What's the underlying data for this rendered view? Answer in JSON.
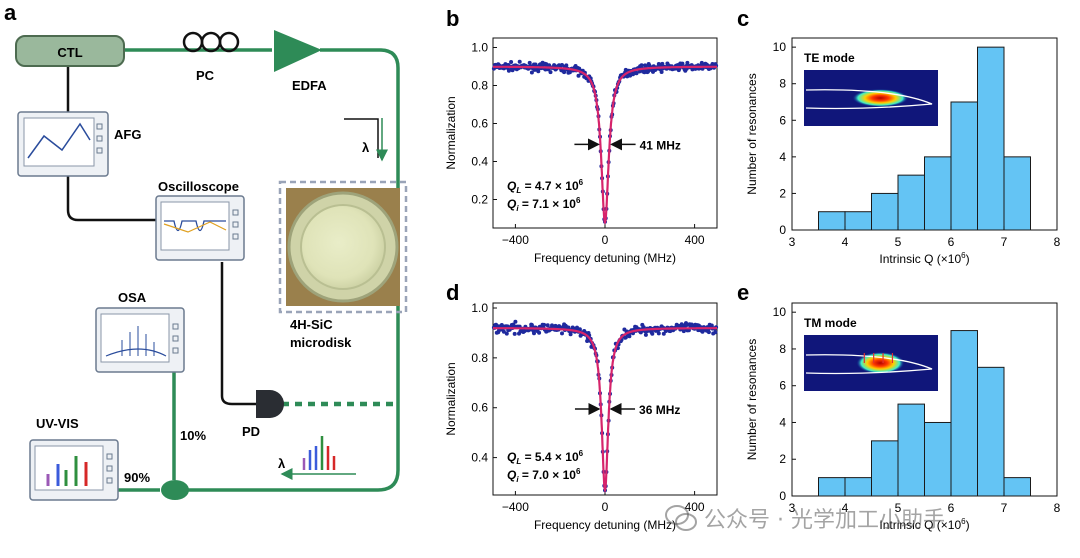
{
  "panels": {
    "a": "a",
    "b": "b",
    "c": "c",
    "d": "d",
    "e": "e"
  },
  "setup": {
    "ctl": "CTL",
    "pc": "PC",
    "edfa": "EDFA",
    "afg": "AFG",
    "oscilloscope": "Oscilloscope",
    "osa": "OSA",
    "uvvis": "UV-VIS",
    "pd": "PD",
    "ratio10": "10%",
    "ratio90": "90%",
    "lambda": "λ",
    "device1": "4H-SiC",
    "device2": "microdisk",
    "colors": {
      "fiber": "#2e8b57",
      "ctl_box": "#9ab89c"
    }
  },
  "chart_data": [
    {
      "id": "b",
      "type": "scatter",
      "xlabel": "Frequency detuning (MHz)",
      "ylabel": "Normalization",
      "xlim": [
        -500,
        500
      ],
      "ylim": [
        0.05,
        1.05
      ],
      "xticks": [
        -400,
        0,
        400
      ],
      "yticks": [
        0.2,
        0.4,
        0.6,
        0.8,
        1.0
      ],
      "tick_labels_x": [
        "−400",
        "0",
        "400"
      ],
      "tick_labels_y": [
        "0.2",
        "0.4",
        "0.6",
        "0.8",
        "1.0"
      ],
      "fit": {
        "baseline": 0.9,
        "dip_min": 0.08,
        "fwhm_mhz": 41
      },
      "annotation": "41 MHz",
      "ql_label": "Q",
      "ql_sub": "L",
      "ql_value": " = 4.7 × 10",
      "ql_exp": "6",
      "qi_label": "Q",
      "qi_sub": "i",
      "qi_value": " = 7.1 × 10",
      "qi_exp": "6",
      "colors": {
        "points": "#1f2a9e",
        "fit": "#d6246b"
      }
    },
    {
      "id": "d",
      "type": "scatter",
      "xlabel": "Frequency detuning (MHz)",
      "ylabel": "Normalization",
      "xlim": [
        -500,
        500
      ],
      "ylim": [
        0.25,
        1.02
      ],
      "xticks": [
        -400,
        0,
        400
      ],
      "yticks": [
        0.4,
        0.6,
        0.8,
        1.0
      ],
      "tick_labels_x": [
        "−400",
        "0",
        "400"
      ],
      "tick_labels_y": [
        "0.4",
        "0.6",
        "0.8",
        "1.0"
      ],
      "fit": {
        "baseline": 0.92,
        "dip_min": 0.27,
        "fwhm_mhz": 36
      },
      "annotation": "36 MHz",
      "ql_label": "Q",
      "ql_sub": "L",
      "ql_value": " = 5.4 × 10",
      "ql_exp": "6",
      "qi_label": "Q",
      "qi_sub": "i",
      "qi_value": " = 7.0 × 10",
      "qi_exp": "6",
      "colors": {
        "points": "#1f2a9e",
        "fit": "#d6246b"
      }
    },
    {
      "id": "c",
      "type": "bar",
      "xlabel": "Intrinsic Q (×10",
      "xlabel_exp": "6",
      "xlabel_end": ")",
      "ylabel": "Number of resonances",
      "xlim": [
        3,
        8
      ],
      "ylim": [
        0,
        10.5
      ],
      "xticks": [
        3,
        4,
        5,
        6,
        7,
        8
      ],
      "yticks": [
        0,
        2,
        4,
        6,
        8,
        10
      ],
      "bin_edges": [
        3.5,
        4.0,
        4.5,
        5.0,
        5.5,
        6.0,
        6.5,
        7.0,
        7.5
      ],
      "values": [
        1,
        1,
        2,
        3,
        4,
        7,
        10,
        4
      ],
      "inset_label": "TE mode",
      "colors": {
        "bar": "#64c4f4",
        "edge": "#1a1a1a"
      }
    },
    {
      "id": "e",
      "type": "bar",
      "xlabel": "Intrinsic Q (×10",
      "xlabel_exp": "6",
      "xlabel_end": ")",
      "ylabel": "Number of resonances",
      "xlim": [
        3,
        8
      ],
      "ylim": [
        0,
        10.5
      ],
      "xticks": [
        3,
        4,
        5,
        6,
        7,
        8
      ],
      "yticks": [
        0,
        2,
        4,
        6,
        8,
        10
      ],
      "bin_edges": [
        3.5,
        4.0,
        4.5,
        5.0,
        5.5,
        6.0,
        6.5,
        7.0,
        7.5
      ],
      "values": [
        1,
        1,
        3,
        5,
        4,
        9,
        7,
        1
      ],
      "inset_label": "TM mode",
      "colors": {
        "bar": "#64c4f4",
        "edge": "#1a1a1a"
      }
    }
  ],
  "watermark": {
    "text": "公众号 · 光学加工小助手"
  }
}
